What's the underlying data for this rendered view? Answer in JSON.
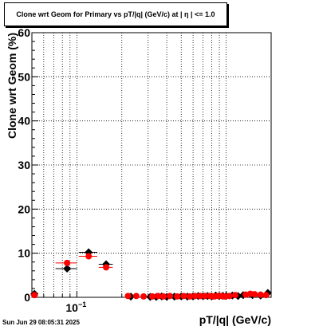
{
  "chart_data": {
    "type": "scatter",
    "title": "Clone wrt Geom for Primary vs pT/|q| (GeV/c) at |  η  | <= 1.0",
    "xlabel": "pT/|q| (GeV/c)",
    "ylabel": "Clone wrt Geom (%)",
    "x_scale": "log",
    "xlim": [
      0.05,
      2.0
    ],
    "ylim": [
      0,
      60
    ],
    "y_ticks": [
      0,
      10,
      20,
      30,
      40,
      50,
      60
    ],
    "x_tick_label": "10^{-1}",
    "grid": true,
    "legend": "none",
    "series": [
      {
        "color": "#000000",
        "marker": "diamond",
        "x": [
          0.052,
          0.086,
          0.12,
          0.157,
          0.23,
          0.31,
          0.34,
          0.37,
          0.4,
          0.45,
          0.5,
          0.55,
          0.6,
          0.65,
          0.7,
          0.75,
          0.8,
          0.85,
          0.9,
          0.95,
          1.0,
          1.1,
          1.2,
          1.3,
          1.5,
          1.7,
          1.9
        ],
        "y": [
          0.8,
          6.5,
          10.2,
          7.5,
          0.15,
          0.1,
          0.1,
          0.2,
          0.1,
          0.15,
          0.2,
          0.15,
          0.2,
          0.3,
          0.25,
          0.3,
          0.2,
          0.4,
          0.3,
          0.35,
          0.3,
          0.4,
          0.3,
          0.5,
          0.5,
          0.4,
          1.0
        ],
        "xerr": [
          0.003,
          0.014,
          0.017,
          0.017,
          0.0,
          0.0,
          0.0,
          0.0,
          0.0,
          0.0,
          0.0,
          0.0,
          0.0,
          0.0,
          0.0,
          0.0,
          0.0,
          0.0,
          0.0,
          0.0,
          0.0,
          0.0,
          0.0,
          0.0,
          0.0,
          0.0,
          0.0
        ]
      },
      {
        "color": "#ff0000",
        "marker": "circle",
        "x": [
          0.052,
          0.086,
          0.12,
          0.157,
          0.22,
          0.25,
          0.28,
          0.32,
          0.35,
          0.38,
          0.42,
          0.47,
          0.52,
          0.57,
          0.62,
          0.67,
          0.72,
          0.78,
          0.83,
          0.88,
          0.93,
          0.98,
          1.05,
          1.15,
          1.35,
          1.45,
          1.55,
          1.7,
          1.85
        ],
        "y": [
          0.5,
          7.8,
          9.3,
          6.8,
          0.3,
          0.3,
          0.2,
          0.2,
          0.3,
          0.2,
          0.3,
          0.2,
          0.3,
          0.2,
          0.3,
          0.3,
          0.3,
          0.3,
          0.2,
          0.3,
          0.3,
          0.2,
          0.3,
          0.5,
          0.6,
          0.8,
          0.7,
          0.6,
          0.5
        ],
        "xerr": [
          0.003,
          0.014,
          0.017,
          0.017,
          0.0,
          0.0,
          0.0,
          0.0,
          0.0,
          0.0,
          0.0,
          0.0,
          0.0,
          0.0,
          0.0,
          0.0,
          0.0,
          0.0,
          0.0,
          0.0,
          0.0,
          0.0,
          0.0,
          0.0,
          0.0,
          0.0,
          0.0,
          0.0,
          0.0
        ]
      }
    ]
  },
  "timestamp": "Sun Jun 29 08:05:31 2025"
}
